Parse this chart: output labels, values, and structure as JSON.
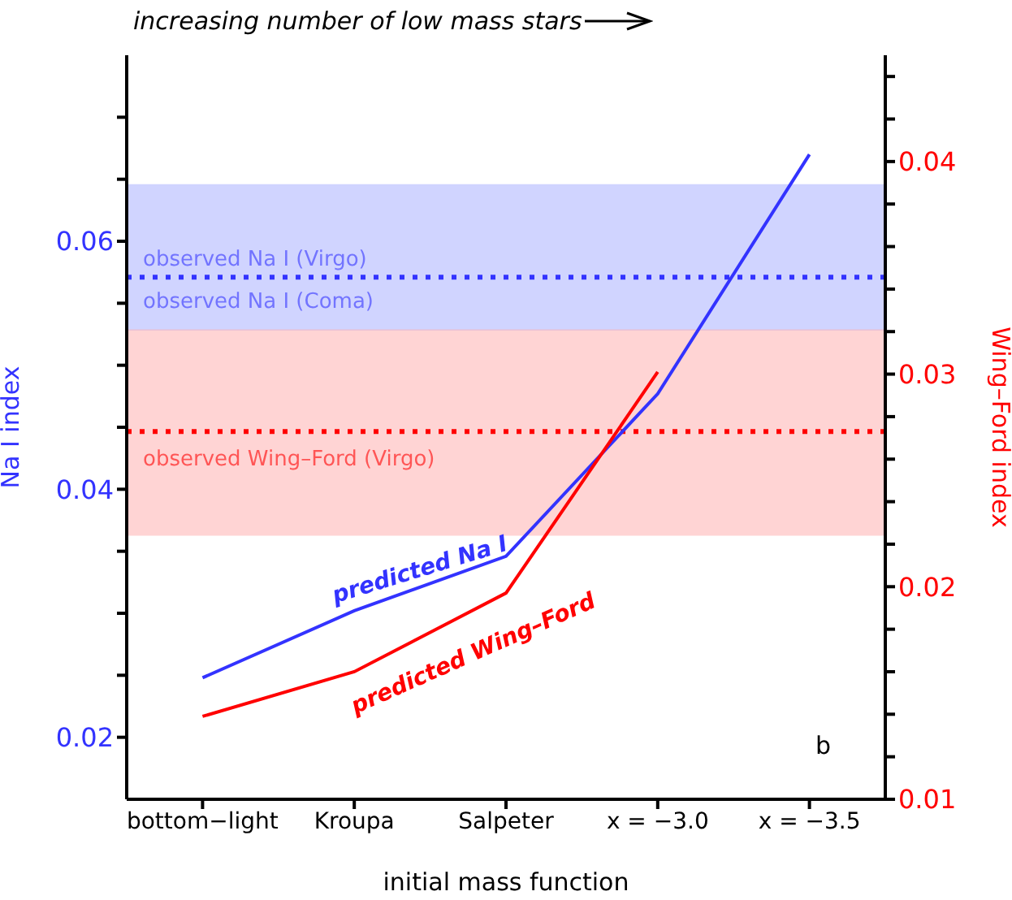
{
  "chart_data": {
    "type": "line",
    "title": "increasing number of low mass stars",
    "xlabel": "initial mass function",
    "ylabel": "Na I index",
    "y2label": "Wing–Ford index",
    "categories": [
      "bottom−light",
      "Kroupa",
      "Salpeter",
      "x = −3.0",
      "x = −3.5"
    ],
    "series": [
      {
        "name": "predicted Na I",
        "color": "#3333ff",
        "values": [
          0.0248,
          0.0302,
          0.0346,
          0.0477,
          0.067
        ]
      },
      {
        "name": "predicted Wing–Ford",
        "color": "#ff0000",
        "axis": "y2",
        "values": [
          0.0139,
          0.016,
          0.0197,
          0.0301,
          null
        ]
      }
    ],
    "ylim": [
      0.015,
      0.075
    ],
    "yticks": [
      {
        "value": 0.02,
        "label": "0.02"
      },
      {
        "value": 0.025,
        "label": null
      },
      {
        "value": 0.03,
        "label": null
      },
      {
        "value": 0.035,
        "label": null
      },
      {
        "value": 0.04,
        "label": "0.04"
      },
      {
        "value": 0.045,
        "label": null
      },
      {
        "value": 0.05,
        "label": null
      },
      {
        "value": 0.055,
        "label": null
      },
      {
        "value": 0.06,
        "label": "0.06"
      },
      {
        "value": 0.065,
        "label": null
      },
      {
        "value": 0.07,
        "label": null
      }
    ],
    "y2lim": [
      0.01,
      0.045
    ],
    "y2ticks": [
      {
        "value": 0.01,
        "label": "0.01"
      },
      {
        "value": 0.012,
        "label": null
      },
      {
        "value": 0.014,
        "label": null
      },
      {
        "value": 0.016,
        "label": null
      },
      {
        "value": 0.018,
        "label": null
      },
      {
        "value": 0.02,
        "label": "0.02"
      },
      {
        "value": 0.022,
        "label": null
      },
      {
        "value": 0.024,
        "label": null
      },
      {
        "value": 0.026,
        "label": null
      },
      {
        "value": 0.028,
        "label": null
      },
      {
        "value": 0.03,
        "label": "0.03"
      },
      {
        "value": 0.032,
        "label": null
      },
      {
        "value": 0.034,
        "label": null
      },
      {
        "value": 0.036,
        "label": null
      },
      {
        "value": 0.038,
        "label": null
      },
      {
        "value": 0.04,
        "label": "0.04"
      },
      {
        "value": 0.042,
        "label": null
      },
      {
        "value": 0.044,
        "label": null
      }
    ],
    "bands": [
      {
        "axis": "y",
        "from": 0.0528,
        "to": 0.0646,
        "color": "#aab0ff"
      },
      {
        "axis": "y2",
        "from": 0.0224,
        "to": 0.0321,
        "color": "#ffb0b0"
      }
    ],
    "ref_lines": [
      {
        "axis": "y",
        "value": 0.0571,
        "label": "observed Na I (Virgo)",
        "color": "#3333ff",
        "line_style": "dotted"
      },
      {
        "axis": "y2",
        "value": 0.0273,
        "label": "observed Wing–Ford (Virgo)",
        "color": "#ff0000",
        "line_style": "dotted"
      }
    ],
    "annotations": [
      "b",
      {
        "text": "observed Na I (Coma)",
        "y": 0.0571
      }
    ],
    "legend": false,
    "grid": false,
    "marker": "none",
    "line_style": "solid"
  }
}
